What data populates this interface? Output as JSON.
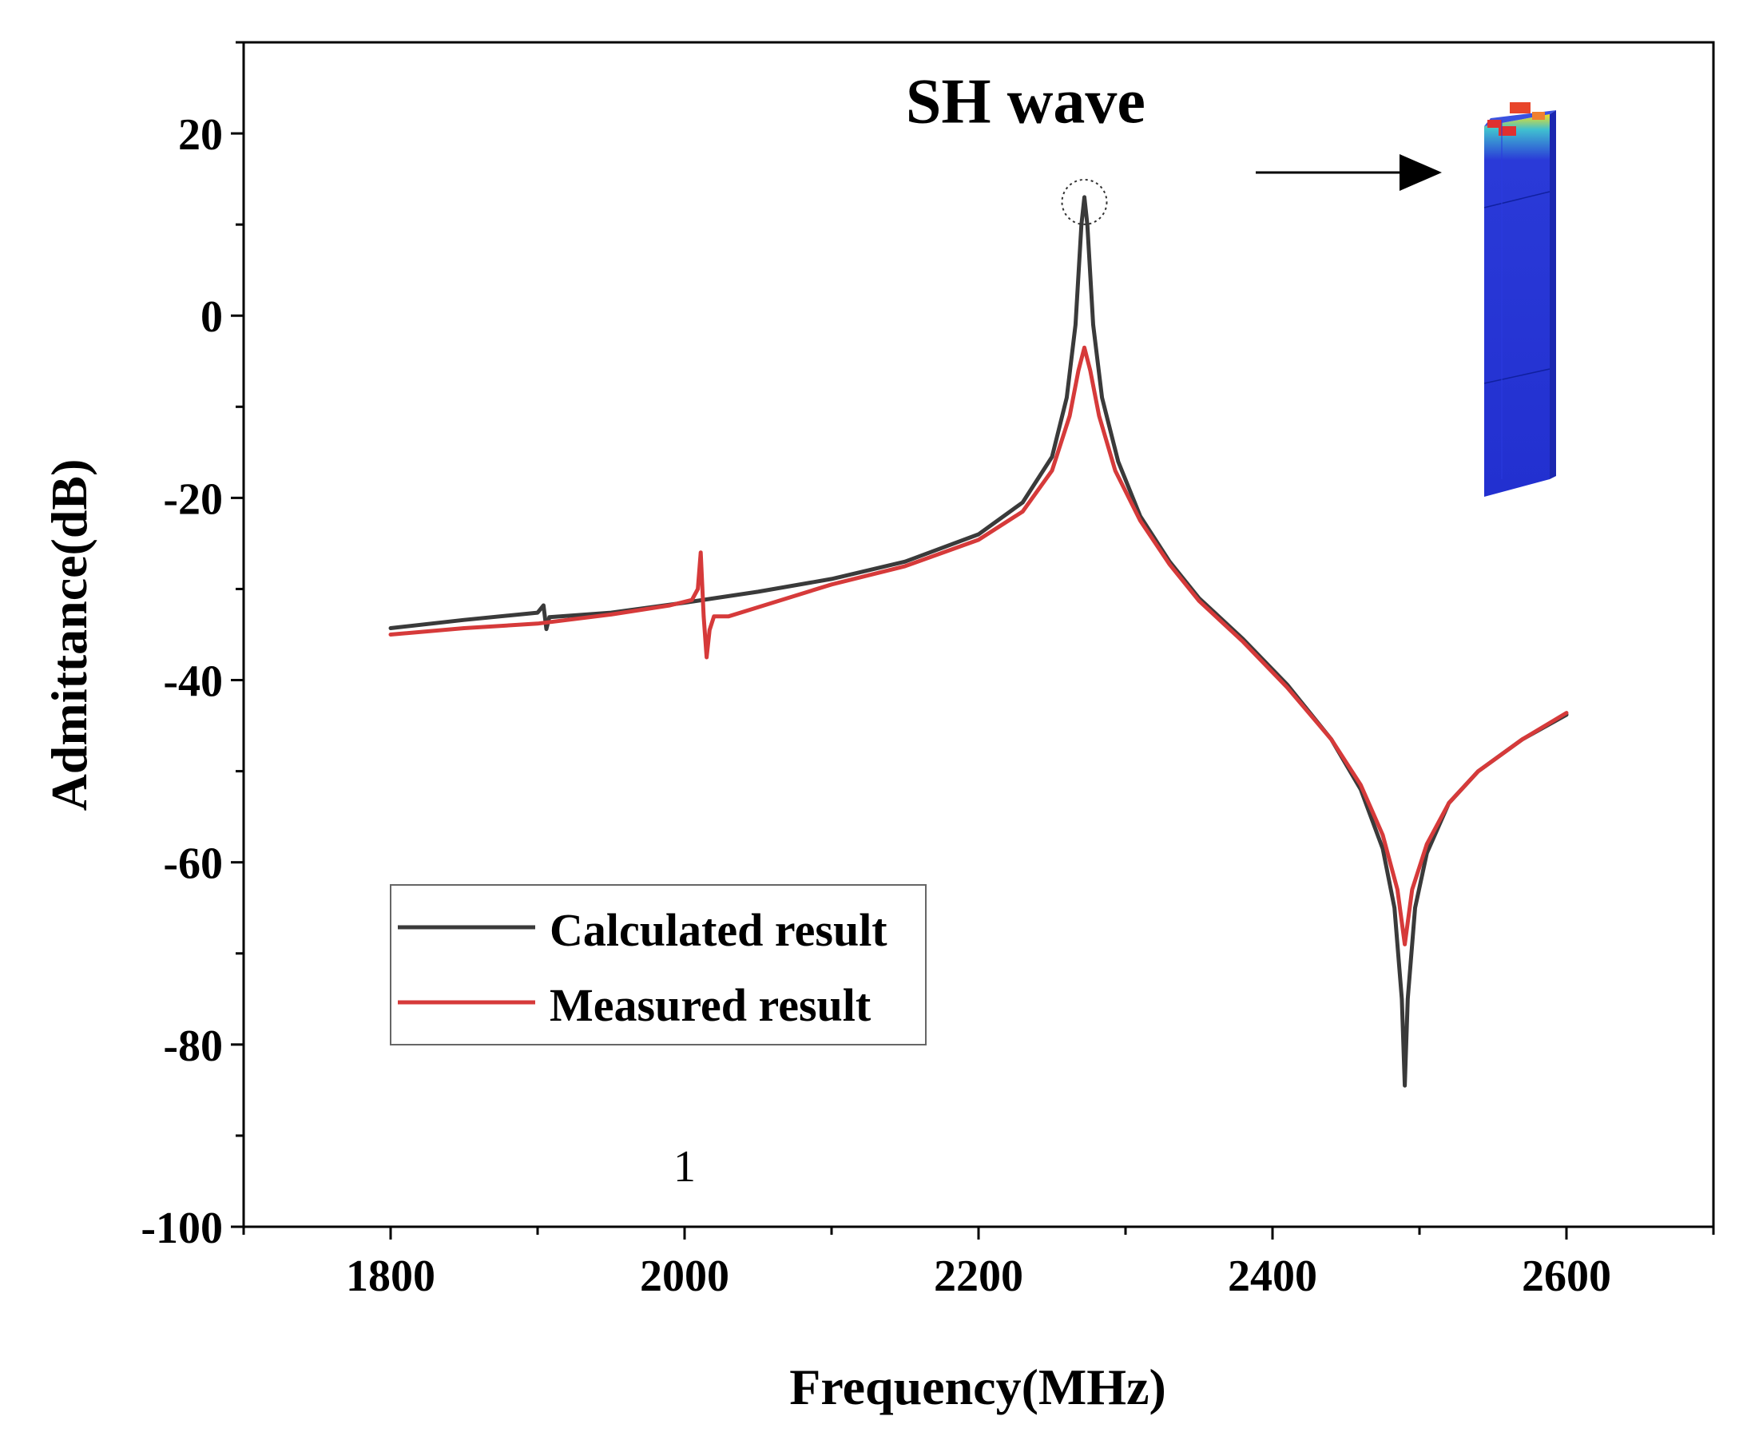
{
  "chart_data": {
    "type": "line",
    "title": "",
    "xlabel": "Frequency(MHz)",
    "ylabel": "Admittance(dB)",
    "xlim": [
      1700,
      2700
    ],
    "ylim": [
      -100,
      30
    ],
    "x_ticks": [
      1800,
      2000,
      2200,
      2400,
      2600
    ],
    "x_tick_labels": [
      "1800",
      "2000",
      "2200",
      "2400",
      "2600"
    ],
    "y_ticks": [
      20,
      0,
      -20,
      -40,
      -60,
      -80,
      -100
    ],
    "y_tick_labels": [
      "20",
      "0",
      "-20",
      "-40",
      "-60",
      "-80",
      "-100"
    ],
    "grid": false,
    "legend_position": "bottom-left",
    "series": [
      {
        "name": "Calculated result",
        "color": "#3a3a3a",
        "points": [
          [
            1800,
            -34.3
          ],
          [
            1850,
            -33.4
          ],
          [
            1900,
            -32.6
          ],
          [
            1904,
            -31.8
          ],
          [
            1906,
            -34.4
          ],
          [
            1908,
            -33.1
          ],
          [
            1950,
            -32.6
          ],
          [
            2000,
            -31.5
          ],
          [
            2050,
            -30.3
          ],
          [
            2100,
            -28.9
          ],
          [
            2150,
            -27.0
          ],
          [
            2200,
            -24.0
          ],
          [
            2230,
            -20.5
          ],
          [
            2250,
            -15.5
          ],
          [
            2260,
            -9.0
          ],
          [
            2266,
            -1.0
          ],
          [
            2270,
            10.0
          ],
          [
            2272,
            13.0
          ],
          [
            2274,
            10.0
          ],
          [
            2278,
            -1.0
          ],
          [
            2284,
            -9.0
          ],
          [
            2295,
            -16.0
          ],
          [
            2310,
            -22.0
          ],
          [
            2330,
            -27.0
          ],
          [
            2350,
            -31.0
          ],
          [
            2380,
            -35.5
          ],
          [
            2410,
            -40.5
          ],
          [
            2440,
            -46.5
          ],
          [
            2460,
            -52.0
          ],
          [
            2475,
            -58.5
          ],
          [
            2483,
            -65.0
          ],
          [
            2488,
            -75.0
          ],
          [
            2490,
            -84.5
          ],
          [
            2492,
            -75.0
          ],
          [
            2497,
            -65.0
          ],
          [
            2505,
            -59.0
          ],
          [
            2520,
            -53.5
          ],
          [
            2540,
            -50.0
          ],
          [
            2570,
            -46.5
          ],
          [
            2600,
            -43.8
          ]
        ]
      },
      {
        "name": "Measured result",
        "color": "#d63a3a",
        "points": [
          [
            1800,
            -35.0
          ],
          [
            1850,
            -34.3
          ],
          [
            1900,
            -33.8
          ],
          [
            1950,
            -32.8
          ],
          [
            1990,
            -31.8
          ],
          [
            2005,
            -31.2
          ],
          [
            2009,
            -30.0
          ],
          [
            2011,
            -26.0
          ],
          [
            2013,
            -33.0
          ],
          [
            2015,
            -37.5
          ],
          [
            2017,
            -34.5
          ],
          [
            2020,
            -33.0
          ],
          [
            2030,
            -33.0
          ],
          [
            2060,
            -31.5
          ],
          [
            2100,
            -29.5
          ],
          [
            2150,
            -27.5
          ],
          [
            2200,
            -24.6
          ],
          [
            2230,
            -21.5
          ],
          [
            2250,
            -17.0
          ],
          [
            2262,
            -11.0
          ],
          [
            2268,
            -6.0
          ],
          [
            2272,
            -3.5
          ],
          [
            2276,
            -6.0
          ],
          [
            2282,
            -11.0
          ],
          [
            2293,
            -17.0
          ],
          [
            2310,
            -22.5
          ],
          [
            2330,
            -27.3
          ],
          [
            2350,
            -31.3
          ],
          [
            2380,
            -35.8
          ],
          [
            2410,
            -40.8
          ],
          [
            2440,
            -46.5
          ],
          [
            2460,
            -51.5
          ],
          [
            2475,
            -57.0
          ],
          [
            2485,
            -63.0
          ],
          [
            2490,
            -69.0
          ],
          [
            2495,
            -63.0
          ],
          [
            2505,
            -58.0
          ],
          [
            2520,
            -53.5
          ],
          [
            2540,
            -50.0
          ],
          [
            2570,
            -46.5
          ],
          [
            2600,
            -43.6
          ]
        ]
      }
    ],
    "annotations": [
      {
        "text": "SH wave",
        "x": 2232,
        "y": 21.2
      },
      {
        "text": "1",
        "x": 2000,
        "y": -95
      }
    ]
  }
}
